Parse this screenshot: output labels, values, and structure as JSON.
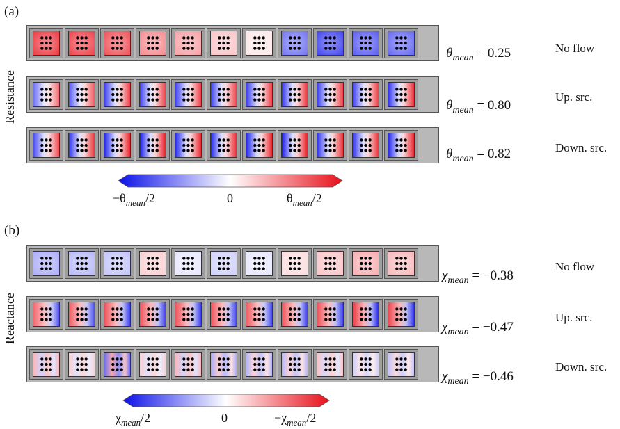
{
  "panels": [
    {
      "label": "(a)",
      "side_label": "Resistance",
      "rows": [
        {
          "mean_symbol": "θ",
          "mean_sub": "mean",
          "mean_value": "= 0.25",
          "condition": "No flow",
          "pattern": "uniform",
          "values": [
            0.85,
            0.82,
            0.75,
            0.5,
            0.4,
            0.25,
            0.1,
            -0.6,
            -0.8,
            -0.7,
            -0.65
          ]
        },
        {
          "mean_symbol": "θ",
          "mean_sub": "mean",
          "mean_value": "= 0.80",
          "condition": "Up. src.",
          "pattern": "split-bp",
          "values": [
            0.6,
            0.7,
            0.8,
            0.8,
            0.8,
            0.8,
            0.8,
            0.85,
            0.8,
            0.8,
            0.85
          ]
        },
        {
          "mean_symbol": "θ",
          "mean_sub": "mean",
          "mean_value": "= 0.82",
          "condition": "Down. src.",
          "pattern": "split-bp",
          "values": [
            0.75,
            0.85,
            0.9,
            0.95,
            0.9,
            0.9,
            0.9,
            0.95,
            0.85,
            0.85,
            0.9
          ]
        }
      ],
      "colorbar": {
        "left": "−θ",
        "left_sub": "mean",
        "left_suffix": "/2",
        "center": "0",
        "right": "θ",
        "right_sub": "mean",
        "right_suffix": "/2"
      }
    },
    {
      "label": "(b)",
      "side_label": "Reactance",
      "rows": [
        {
          "mean_symbol": "χ",
          "mean_sub": "mean",
          "mean_value": "= −0.38",
          "condition": "No flow",
          "pattern": "uniform",
          "values": [
            -0.35,
            -0.3,
            -0.25,
            0.2,
            -0.1,
            -0.2,
            -0.1,
            0.15,
            0.25,
            0.35,
            0.3
          ]
        },
        {
          "mean_symbol": "χ",
          "mean_sub": "mean",
          "mean_value": "= −0.47",
          "condition": "Up. src.",
          "pattern": "split-rb",
          "values": [
            0.7,
            0.75,
            0.8,
            0.8,
            0.8,
            0.8,
            0.75,
            0.8,
            0.8,
            0.9,
            0.85
          ]
        },
        {
          "mean_symbol": "χ",
          "mean_sub": "mean",
          "mean_value": "= −0.46",
          "condition": "Down. src.",
          "pattern": "noisy",
          "values": [
            0.3,
            0.2,
            -0.6,
            0.2,
            0.3,
            -0.35,
            -0.3,
            -0.3,
            0.25,
            -0.2,
            -0.25
          ]
        }
      ],
      "colorbar": {
        "left": "χ",
        "left_sub": "mean",
        "left_suffix": "/2",
        "center": "0",
        "right": "−χ",
        "right_sub": "mean",
        "right_suffix": "/2"
      }
    }
  ],
  "colors": {
    "negative": "#0b10e8",
    "zero": "#ffffff",
    "positive": "#e8101a",
    "dot": "#000000"
  }
}
